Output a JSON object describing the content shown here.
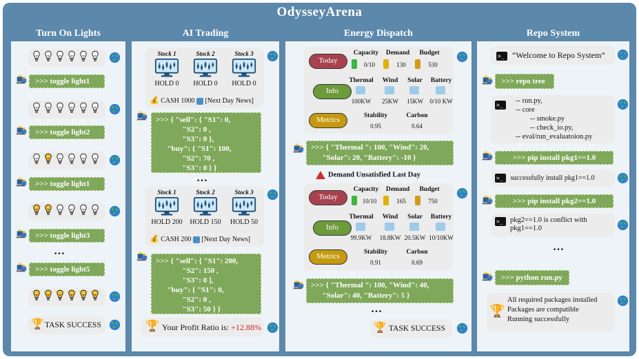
{
  "title": "OdysseyArena",
  "colors": {
    "frame": "#5b88ab",
    "green": "#7fa85a",
    "gray": "#ececec",
    "red_pill": "#a8424f",
    "olive_pill": "#c59a10",
    "teal_pill": "#6d9a3b",
    "profit": "#d02020"
  },
  "lights": {
    "header": "Turn On Lights",
    "actions": [
      ">>> toggle light1",
      ">>> toggle light2",
      ">>> toggle light1",
      ">>> toggle light3",
      ">>> toggle light5"
    ],
    "states": [
      [
        0,
        0,
        0,
        0,
        0,
        0
      ],
      [
        0,
        0,
        0,
        0,
        0,
        0
      ],
      [
        0,
        1,
        0,
        0,
        0,
        0
      ],
      [
        1,
        1,
        0,
        0,
        0,
        0
      ],
      [
        1,
        1,
        1,
        1,
        1,
        1
      ]
    ],
    "ellipsis": "…",
    "success": "TASK SUCCESS"
  },
  "trading": {
    "header": "AI Trading",
    "stock_labels": [
      "Stock 1",
      "Stock 2",
      "Stock 3"
    ],
    "state1": {
      "holds": [
        "HOLD 0",
        "HOLD 0",
        "HOLD 0"
      ],
      "cash": "CASH 1000",
      "news": "[Next Day News]"
    },
    "action1": ">>> { \"sell\": { \"S1\": 0,\n              \"S2\": 0 ,\n              \"S3\": 0 },\n      \"buy\": { \"S1\": 100,\n              \"S2\": 70 ,\n              \"S3\": 0 } }",
    "ellipsis": "…",
    "state2": {
      "holds": [
        "HOLD 200",
        "HOLD 150",
        "HOLD 50"
      ],
      "cash": "CASH 200",
      "news": "[Next Day News]"
    },
    "action2": ">>> { \"sell\": { \"S1\": 200,\n              \"S2\": 150 ,\n              \"S3\": 0 ],\n      \"buy\": { \"S1\": 0,\n              \"S2\": 0 ,\n              \"S3\": 50 } }",
    "profit_label": "Your Profit Ratio is:",
    "profit_value": "+12.88%"
  },
  "energy": {
    "header": "Energy Dispatch",
    "pills": {
      "today": "Today",
      "info": "Info",
      "metrics": "Metrics"
    },
    "labels": {
      "capacity": "Capacity",
      "demand": "Demand",
      "budget": "Budget",
      "thermal": "Thermal",
      "wind": "Wind",
      "solar": "Solar",
      "battery": "Battery",
      "stability": "Stability",
      "carbon": "Carbon"
    },
    "day1": {
      "capacity": "0/10",
      "demand": "130",
      "budget": "530",
      "thermal": "100KW",
      "wind": "25KW",
      "solar": "15KW",
      "battery": "0/10 KW",
      "stability": "0.95",
      "carbon": "0.64"
    },
    "action1": ">>> { \"Thermal \": 100, \"Wind\": 20,\n      \"Solar\": 20, \"Battery\": -10 }",
    "warning": "Demand Unsatisfied Last Day",
    "day2": {
      "capacity": "10/10",
      "demand": "165",
      "budget": "750",
      "thermal": "99.9KW",
      "wind": "18.8KW",
      "solar": "20.5KW",
      "battery": "10/10KW",
      "stability": "0.91",
      "carbon": "0.69"
    },
    "action2": ">>> { \"Thermal \": 100, \"Wind\": 40,\n      \"Solar\": 40, \"Battery\": 5 }",
    "ellipsis": "…",
    "success": "TASK SUCCESS"
  },
  "repo": {
    "header": "Repo System",
    "welcome": "“Welcome to Repo System”",
    "cmd1": ">>>  repo tree",
    "tree": "-- run.py,\n-- core\n        -- smoke.py\n        -- check_io.py,\n-- eval/run_evaluatoion.py",
    "cmd2": ">>> pip install pkg1==1.0",
    "out2": "successfully install pkg1==1.0",
    "cmd3": ">>> pip install pkg2==1.0",
    "out3": "pkg2==1.0 is conflict with\npkg1==1.0",
    "ellipsis": "…",
    "cmd4": ">>> python run.py",
    "final": "All required packages installed\nPackages are compatible\nRunning successfully",
    "prompt_glyph": ">_"
  }
}
